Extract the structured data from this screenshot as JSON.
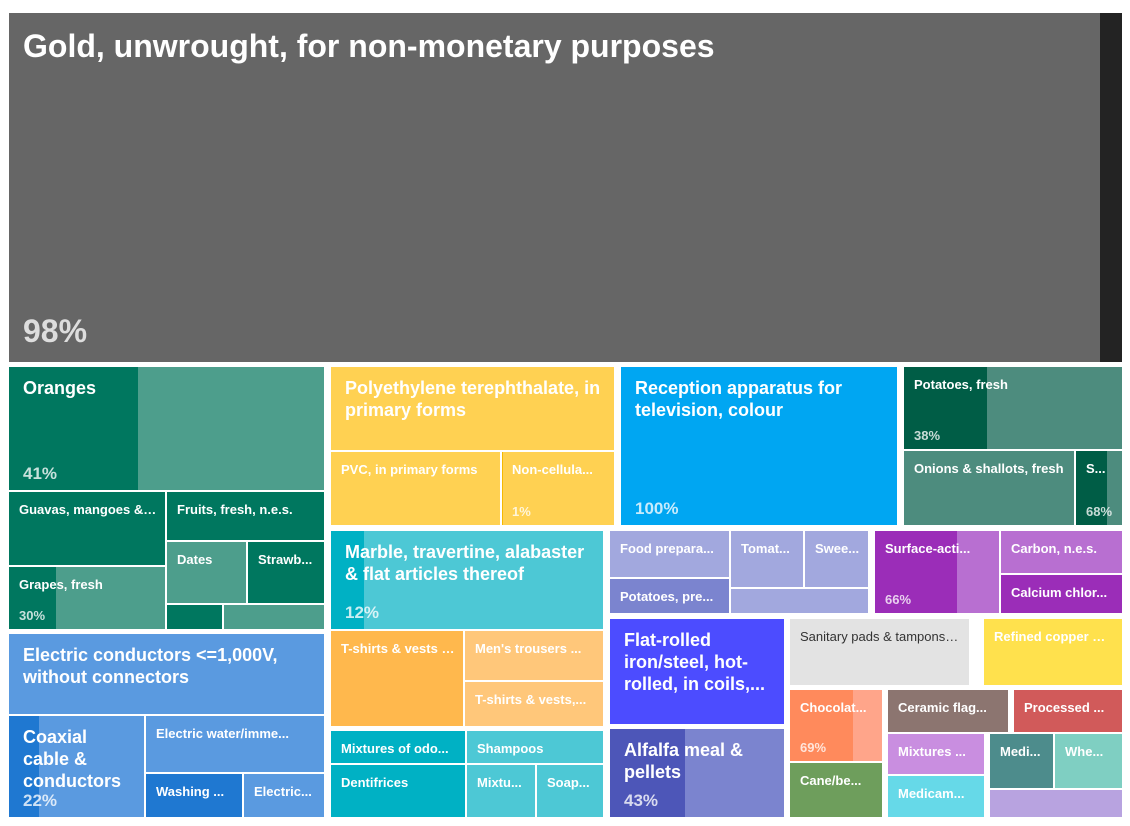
{
  "chart_data": {
    "type": "treemap",
    "tiles": [
      {
        "id": "gold",
        "label": "Gold, unwrought, for non-monetary purposes",
        "pct": "98%",
        "share": 0.98,
        "color": "#232323",
        "shade": "#666666",
        "size": "big"
      },
      {
        "id": "oranges",
        "label": "Oranges",
        "pct": "41%",
        "share": 0.41,
        "color": "#4d9e8c",
        "shade": "#00775f",
        "size": "med"
      },
      {
        "id": "guavas",
        "label": "Guavas, mangoes & mangosteens",
        "pct": "",
        "share": 0,
        "color": "#00775f",
        "shade": "#00775f",
        "size": "sm"
      },
      {
        "id": "fruits",
        "label": "Fruits, fresh, n.e.s.",
        "pct": "",
        "share": 0,
        "color": "#00775f",
        "shade": "#00775f",
        "size": "sm"
      },
      {
        "id": "dates",
        "label": "Dates",
        "pct": "",
        "share": 0,
        "color": "#4d9e8c",
        "shade": "#4d9e8c",
        "size": "sm"
      },
      {
        "id": "strawb",
        "label": "Strawb...",
        "pct": "",
        "share": 0,
        "color": "#00775f",
        "shade": "#00775f",
        "size": "sm"
      },
      {
        "id": "grapes",
        "label": "Grapes, fresh",
        "pct": "30%",
        "share": 0.3,
        "color": "#4d9e8c",
        "shade": "#00775f",
        "size": "sm"
      },
      {
        "id": "fruit_small",
        "label": "",
        "pct": "",
        "share": 0,
        "color": "#00775f",
        "shade": "#00775f",
        "size": "sm"
      },
      {
        "id": "fruit_small2",
        "label": "",
        "pct": "",
        "share": 0,
        "color": "#4d9e8c",
        "shade": "#4d9e8c",
        "size": "sm"
      },
      {
        "id": "elec_cond",
        "label": "Electric conductors <=1,000V, without connectors",
        "pct": "",
        "share": 0,
        "color": "#5a9ae0",
        "shade": "#1f78d1",
        "size": "med"
      },
      {
        "id": "coaxial",
        "label": "Coaxial cable & conductors",
        "pct": "22%",
        "share": 0.22,
        "color": "#5a9ae0",
        "shade": "#1f78d1",
        "size": "med"
      },
      {
        "id": "elec_water",
        "label": "Electric water/imme...",
        "pct": "",
        "share": 0,
        "color": "#5a9ae0",
        "shade": "#1f78d1",
        "size": "sm"
      },
      {
        "id": "washing",
        "label": "Washing ...",
        "pct": "",
        "share": 0,
        "color": "#1f78d1",
        "shade": "#1f78d1",
        "size": "sm"
      },
      {
        "id": "electric2",
        "label": "Electric...",
        "pct": "",
        "share": 0,
        "color": "#5a9ae0",
        "shade": "#1f78d1",
        "size": "sm"
      },
      {
        "id": "pet",
        "label": "Polyethylene terephthalate, in primary forms",
        "pct": "",
        "share": 0,
        "color": "#ffd152",
        "shade": "#ffd152",
        "size": "med"
      },
      {
        "id": "pvc",
        "label": "PVC, in primary forms",
        "pct": "",
        "share": 0,
        "color": "#ffd152",
        "shade": "#f5b800",
        "size": "sm"
      },
      {
        "id": "noncell",
        "label": "Non-cellula...",
        "pct": "1%",
        "share": 0.01,
        "color": "#ffd152",
        "shade": "#f5b800",
        "size": "sm"
      },
      {
        "id": "marble",
        "label": "Marble, travertine, alabaster & flat articles thereof",
        "pct": "12%",
        "share": 0.12,
        "color": "#4dc8d5",
        "shade": "#00b1c4",
        "size": "med"
      },
      {
        "id": "tshirts",
        "label": "T-shirts & vests of cotton, knit/c...",
        "pct": "",
        "share": 0,
        "color": "#ffb84d",
        "shade": "#ffb84d",
        "size": "sm"
      },
      {
        "id": "mens",
        "label": "Men's trousers ...",
        "pct": "",
        "share": 0,
        "color": "#ffc77a",
        "shade": "#ffb84d",
        "size": "sm"
      },
      {
        "id": "tshirts2",
        "label": "T-shirts & vests,...",
        "pct": "",
        "share": 0,
        "color": "#ffc77a",
        "shade": "#ffc77a",
        "size": "sm"
      },
      {
        "id": "mixtures_odo",
        "label": "Mixtures of odo...",
        "pct": "",
        "share": 0,
        "color": "#00b1c4",
        "shade": "#00b1c4",
        "size": "sm"
      },
      {
        "id": "shampoos",
        "label": "Shampoos",
        "pct": "",
        "share": 0,
        "color": "#4dc8d5",
        "shade": "#00b1c4",
        "size": "sm"
      },
      {
        "id": "dentifrices",
        "label": "Dentifrices",
        "pct": "",
        "share": 0,
        "color": "#00b1c4",
        "shade": "#00b1c4",
        "size": "sm"
      },
      {
        "id": "mixtu",
        "label": "Mixtu...",
        "pct": "",
        "share": 0,
        "color": "#4dc8d5",
        "shade": "#00b1c4",
        "size": "sm"
      },
      {
        "id": "soap",
        "label": "Soap...",
        "pct": "",
        "share": 0,
        "color": "#4dc8d5",
        "shade": "#4dc8d5",
        "size": "sm"
      },
      {
        "id": "reception",
        "label": "Reception apparatus for television, colour",
        "pct": "100%",
        "share": 1.0,
        "color": "#00a6f2",
        "shade": "#00a6f2",
        "size": "med"
      },
      {
        "id": "food_prep",
        "label": "Food prepara...",
        "pct": "",
        "share": 0,
        "color": "#a2a8de",
        "shade": "#7b84cf",
        "size": "sm"
      },
      {
        "id": "tomat",
        "label": "Tomat...",
        "pct": "",
        "share": 0,
        "color": "#a2a8de",
        "shade": "#7b84cf",
        "size": "sm"
      },
      {
        "id": "swee",
        "label": "Swee...",
        "pct": "",
        "share": 0,
        "color": "#a2a8de",
        "shade": "#7b84cf",
        "size": "sm"
      },
      {
        "id": "potatoes_pre",
        "label": "Potatoes, pre...",
        "pct": "",
        "share": 0,
        "color": "#7b84cf",
        "shade": "#7b84cf",
        "size": "sm"
      },
      {
        "id": "veg_small",
        "label": "",
        "pct": "",
        "share": 0,
        "color": "#a2a8de",
        "shade": "#7b84cf",
        "size": "sm"
      },
      {
        "id": "flat_rolled",
        "label": "Flat-rolled iron/steel, hot-rolled, in coils,...",
        "pct": "",
        "share": 0,
        "color": "#4c4cff",
        "shade": "#4c4cff",
        "size": "med"
      },
      {
        "id": "alfalfa",
        "label": "Alfalfa meal & pellets",
        "pct": "43%",
        "share": 0.43,
        "color": "#7b84cf",
        "shade": "#4d56b8",
        "size": "med"
      },
      {
        "id": "potatoes",
        "label": "Potatoes, fresh",
        "pct": "38%",
        "share": 0.38,
        "color": "#4d8c7e",
        "shade": "#005d46",
        "size": "sm"
      },
      {
        "id": "onions",
        "label": "Onions & shallots, fresh",
        "pct": "",
        "share": 0,
        "color": "#4d8c7e",
        "shade": "#005d46",
        "size": "sm"
      },
      {
        "id": "s_small",
        "label": "S...",
        "pct": "68%",
        "share": 0.68,
        "color": "#4d8c7e",
        "shade": "#005d46",
        "size": "sm"
      },
      {
        "id": "surface",
        "label": "Surface-acti...",
        "pct": "66%",
        "share": 0.66,
        "color": "#b86fd1",
        "shade": "#9b2db8",
        "size": "sm"
      },
      {
        "id": "carbon",
        "label": "Carbon, n.e.s.",
        "pct": "",
        "share": 0,
        "color": "#b86fd1",
        "shade": "#9b2db8",
        "size": "sm"
      },
      {
        "id": "calcium",
        "label": "Calcium chlor...",
        "pct": "",
        "share": 0,
        "color": "#9b2db8",
        "shade": "#9b2db8",
        "size": "sm"
      },
      {
        "id": "sanitary",
        "label": "Sanitary pads & tampons, napkin lin...",
        "pct": "",
        "share": 0,
        "color": "#e3e3e3",
        "shade": "#e3e3e3",
        "size": "sm"
      },
      {
        "id": "refined_copper",
        "label": "Refined copper wire, >6mm",
        "pct": "",
        "share": 0,
        "color": "#ffe14d",
        "shade": "#ffe14d",
        "size": "sm"
      },
      {
        "id": "chocolat",
        "label": "Chocolat...",
        "pct": "69%",
        "share": 0.69,
        "color": "#ffa58a",
        "shade": "#ff8a5c",
        "size": "sm"
      },
      {
        "id": "cane",
        "label": "Cane/be...",
        "pct": "",
        "share": 0,
        "color": "#6e9e5c",
        "shade": "#6e9e5c",
        "size": "sm"
      },
      {
        "id": "ceramic",
        "label": "Ceramic flag...",
        "pct": "",
        "share": 0,
        "color": "#8c7570",
        "shade": "#8c7570",
        "size": "sm"
      },
      {
        "id": "processed",
        "label": "Processed ...",
        "pct": "",
        "share": 0,
        "color": "#d15a5a",
        "shade": "#b81f1f",
        "size": "sm"
      },
      {
        "id": "mixtures2",
        "label": "Mixtures ...",
        "pct": "",
        "share": 0,
        "color": "#c98ee0",
        "shade": "#c98ee0",
        "size": "sm"
      },
      {
        "id": "medi",
        "label": "Medi...",
        "pct": "",
        "share": 0,
        "color": "#4d8c8c",
        "shade": "#006b6b",
        "size": "sm"
      },
      {
        "id": "whe",
        "label": "Whe...",
        "pct": "",
        "share": 0,
        "color": "#7fcfc2",
        "shade": "#7fcfc2",
        "size": "sm"
      },
      {
        "id": "medicam",
        "label": "Medicam...",
        "pct": "",
        "share": 0,
        "color": "#66d9e8",
        "shade": "#66d9e8",
        "size": "sm"
      },
      {
        "id": "lavender",
        "label": "",
        "pct": "",
        "share": 0,
        "color": "#b8a3e0",
        "shade": "#b8a3e0",
        "size": "sm"
      }
    ]
  }
}
